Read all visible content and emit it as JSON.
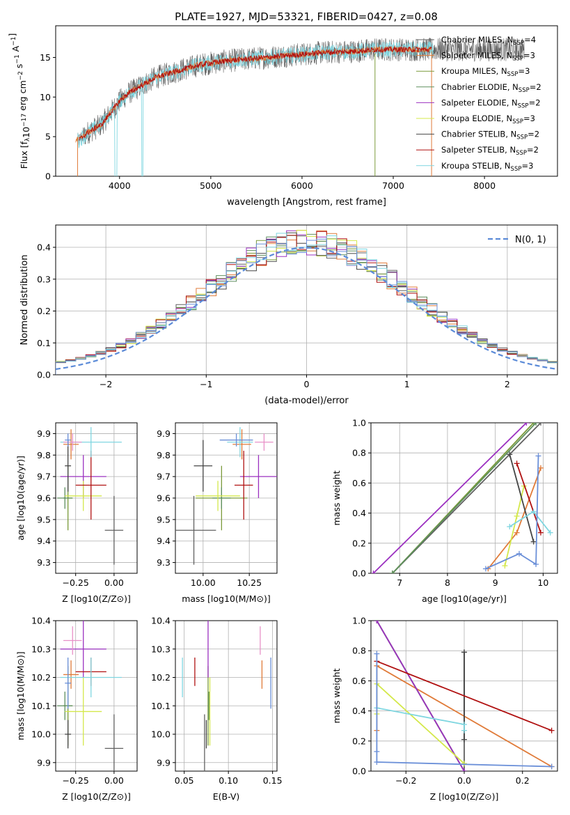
{
  "figure": {
    "title": "PLATE=1927, MJD=53321, FIBERID=0427, z=0.08"
  },
  "colors": {
    "chabrier_miles": "#606060",
    "salpeter_miles": "#e07b39",
    "kroupa_miles": "#7a9a3a",
    "chabrier_elodie": "#5e8f5e",
    "salpeter_elodie": "#9b30c0",
    "kroupa_elodie": "#d4e84a",
    "chabrier_stelib": "#444444",
    "salpeter_stelib": "#b01010",
    "kroupa_stelib": "#7fd6e0",
    "normal": "#5b8bd8",
    "extra1": "#e890c8",
    "extra2": "#6a8fd8"
  },
  "chart_data": [
    {
      "id": "spectrum",
      "type": "line",
      "xlabel": "wavelength [Angstrom, rest frame]",
      "ylabel_main": "Flux [f",
      "ylabel_sub": "λ",
      "ylabel_rest": "10",
      "ylabel_exp": "−17",
      "ylabel_tail": " erg cm",
      "ylabel_exp2": "−2",
      "ylabel_tail2": " s",
      "ylabel_exp3": "−1",
      "ylabel_tail3": " A",
      "ylabel_exp4": "−1",
      "ylabel_end": "]",
      "xlim": [
        3300,
        8800
      ],
      "ylim": [
        0,
        19
      ],
      "xticks": [
        4000,
        5000,
        6000,
        7000,
        8000
      ],
      "yticks": [
        0,
        5,
        10,
        15
      ],
      "grid": false,
      "legend_position": "top-right",
      "legend": [
        {
          "name": "Chabrier MILES, N",
          "sub": "SSP",
          "val": "=4",
          "color_key": "chabrier_miles"
        },
        {
          "name": "Salpeter MILES, N",
          "sub": "SSP",
          "val": "=3",
          "color_key": "salpeter_miles"
        },
        {
          "name": "Kroupa MILES, N",
          "sub": "SSP",
          "val": "=3",
          "color_key": "kroupa_miles"
        },
        {
          "name": "Chabrier ELODIE, N",
          "sub": "SSP",
          "val": "=2",
          "color_key": "chabrier_elodie"
        },
        {
          "name": "Salpeter ELODIE, N",
          "sub": "SSP",
          "val": "=2",
          "color_key": "salpeter_elodie"
        },
        {
          "name": "Kroupa ELODIE, N",
          "sub": "SSP",
          "val": "=3",
          "color_key": "kroupa_elodie"
        },
        {
          "name": "Chabrier STELIB, N",
          "sub": "SSP",
          "val": "=2",
          "color_key": "chabrier_stelib"
        },
        {
          "name": "Salpeter STELIB, N",
          "sub": "SSP",
          "val": "=2",
          "color_key": "salpeter_stelib"
        },
        {
          "name": "Kroupa STELIB, N",
          "sub": "SSP",
          "val": "=3",
          "color_key": "kroupa_stelib"
        }
      ],
      "continuum": {
        "x": [
          3550,
          3650,
          3800,
          3900,
          4000,
          4100,
          4250,
          4400,
          4550,
          4700,
          4850,
          5000,
          5200,
          5400,
          5600,
          5800,
          6000,
          6200,
          6400,
          6600,
          6800,
          7000,
          7200,
          7400
        ],
        "y": [
          4.5,
          5.5,
          6.5,
          8,
          9.5,
          10.5,
          11.5,
          12.5,
          13,
          13.5,
          14,
          14.3,
          14.6,
          14.8,
          15,
          15.2,
          15.4,
          15.6,
          15.7,
          15.8,
          16,
          16,
          16,
          16
        ]
      }
    },
    {
      "id": "residuals",
      "type": "bar",
      "xlabel": "(data-model)/error",
      "ylabel": "Normed distribution",
      "xlim": [
        -2.5,
        2.5
      ],
      "ylim": [
        0,
        0.47
      ],
      "xticks": [
        -2,
        -1,
        0,
        1,
        2
      ],
      "yticks": [
        0.0,
        0.1,
        0.2,
        0.3,
        0.4
      ],
      "grid": true,
      "legend_position": "top-right",
      "legend_label": "N(0, 1)",
      "bin_width": 0.1,
      "bin_start": -2.5
    },
    {
      "id": "age_vs_Z",
      "type": "scatter",
      "xlabel": "Z [log10(Z/Z⊙)]",
      "ylabel": "age  [log10(age/yr)]",
      "xlim": [
        -0.38,
        0.15
      ],
      "ylim": [
        9.25,
        9.95
      ],
      "xticks": [
        -0.25,
        0.0
      ],
      "yticks": [
        9.3,
        9.4,
        9.5,
        9.6,
        9.7,
        9.8,
        9.9
      ],
      "grid": true
    },
    {
      "id": "age_vs_mass",
      "type": "scatter",
      "xlabel": "mass [log10(M/M⊙)]",
      "xlim": [
        9.85,
        10.4
      ],
      "ylim": [
        9.25,
        9.95
      ],
      "xticks": [
        10.0,
        10.25
      ],
      "yticks": [
        9.3,
        9.4,
        9.5,
        9.6,
        9.7,
        9.8,
        9.9
      ],
      "grid": true
    },
    {
      "id": "weight_vs_age",
      "type": "line",
      "xlabel": "age  [log10(age/yr)]",
      "ylabel": "mass weight",
      "xlim": [
        6.4,
        10.3
      ],
      "ylim": [
        0,
        1
      ],
      "xticks": [
        7,
        8,
        9,
        10
      ],
      "yticks": [
        0.0,
        0.2,
        0.4,
        0.6,
        0.8,
        1.0
      ],
      "grid": true
    },
    {
      "id": "mass_vs_Z",
      "type": "scatter",
      "xlabel": "Z [log10(Z/Z⊙)]",
      "ylabel": "mass [log10(M/M⊙)]",
      "xlim": [
        -0.38,
        0.15
      ],
      "ylim": [
        9.87,
        10.4
      ],
      "xticks": [
        -0.25,
        0.0
      ],
      "yticks": [
        9.9,
        10.0,
        10.1,
        10.2,
        10.3,
        10.4
      ],
      "grid": true
    },
    {
      "id": "mass_vs_ebv",
      "type": "scatter",
      "xlabel": "E(B-V)",
      "xlim": [
        0.04,
        0.155
      ],
      "ylim": [
        9.87,
        10.4
      ],
      "xticks": [
        0.05,
        0.1,
        0.15
      ],
      "yticks": [
        9.9,
        10.0,
        10.1,
        10.2,
        10.3,
        10.4
      ],
      "grid": true
    },
    {
      "id": "weight_vs_Z",
      "type": "line",
      "xlabel": "Z [log10(Z/Z⊙)]",
      "ylabel": "mass weight",
      "xlim": [
        -0.32,
        0.32
      ],
      "ylim": [
        0,
        1
      ],
      "xticks": [
        -0.2,
        0.0,
        0.2
      ],
      "yticks": [
        0.0,
        0.2,
        0.4,
        0.6,
        0.8,
        1.0
      ],
      "grid": true
    }
  ],
  "fits": [
    {
      "key": "chabrier_miles",
      "Z": 0.0,
      "Zerr": 0.06,
      "age": 9.45,
      "ageErr": 0.16,
      "mass": 9.95,
      "massErr": 0.12,
      "ebv": 0.073,
      "weights": [
        [
          6.85,
          0.0
        ],
        [
          9.95,
          1.0
        ]
      ],
      "wZ": [
        [
          0.0,
          0.0
        ],
        [
          0.0,
          0.79
        ]
      ]
    },
    {
      "key": "salpeter_miles",
      "Z": -0.28,
      "Zerr": 0.05,
      "age": 9.85,
      "ageErr": 0.07,
      "mass": 10.21,
      "massErr": 0.05,
      "ebv": 0.138,
      "weights": [
        [
          8.85,
          0.03
        ],
        [
          9.45,
          0.27
        ],
        [
          9.95,
          0.7
        ]
      ],
      "wZ": [
        [
          -0.3,
          0.27
        ],
        [
          -0.3,
          0.7
        ],
        [
          0.3,
          0.03
        ]
      ]
    },
    {
      "key": "kroupa_miles",
      "Z": -0.3,
      "Zerr": 0.03,
      "age": 9.6,
      "ageErr": 0.15,
      "mass": 10.1,
      "massErr": 0.14,
      "ebv": 0.077,
      "weights": [
        [
          6.85,
          0.0
        ],
        [
          9.8,
          1.0
        ]
      ],
      "wZ": [
        [
          -0.3,
          1.0
        ],
        [
          0.0,
          0.0
        ]
      ]
    },
    {
      "key": "chabrier_elodie",
      "Z": -0.32,
      "Zerr": 0.05,
      "age": 9.6,
      "ageErr": 0.05,
      "mass": 10.1,
      "massErr": 0.05,
      "ebv": 0.078,
      "weights": [
        [
          6.85,
          0.0
        ],
        [
          9.85,
          1.0
        ]
      ],
      "wZ": [
        [
          -0.3,
          1.0
        ],
        [
          0.0,
          0.0
        ]
      ]
    },
    {
      "key": "salpeter_elodie",
      "Z": -0.2,
      "Zerr": 0.15,
      "age": 9.7,
      "ageErr": 0.1,
      "mass": 10.3,
      "massErr": 0.1,
      "ebv": 0.077,
      "weights": [
        [
          6.45,
          0.0
        ],
        [
          9.65,
          1.0
        ]
      ],
      "wZ": [
        [
          -0.3,
          1.0
        ],
        [
          0.0,
          0.0
        ]
      ]
    },
    {
      "key": "kroupa_elodie",
      "Z": -0.2,
      "Zerr": 0.12,
      "age": 9.61,
      "ageErr": 0.07,
      "mass": 10.08,
      "massErr": 0.12,
      "ebv": 0.079,
      "weights": [
        [
          9.2,
          0.05
        ],
        [
          9.45,
          0.38
        ],
        [
          9.6,
          0.58
        ]
      ],
      "wZ": [
        [
          -0.3,
          0.38
        ],
        [
          -0.3,
          0.58
        ],
        [
          0.0,
          0.05
        ]
      ]
    },
    {
      "key": "chabrier_stelib",
      "Z": -0.3,
      "Zerr": 0.02,
      "age": 9.75,
      "ageErr": 0.12,
      "mass": 10.0,
      "massErr": 0.05,
      "ebv": 0.075,
      "weights": [
        [
          9.3,
          0.79
        ],
        [
          9.8,
          0.21
        ]
      ],
      "wZ": [
        [
          0.0,
          0.79
        ],
        [
          0.0,
          0.21
        ]
      ]
    },
    {
      "key": "salpeter_stelib",
      "Z": -0.15,
      "Zerr": 0.1,
      "age": 9.66,
      "ageErr": 0.16,
      "mass": 10.22,
      "massErr": 0.05,
      "ebv": 0.062,
      "weights": [
        [
          9.45,
          0.73
        ],
        [
          9.95,
          0.27
        ]
      ],
      "wZ": [
        [
          -0.3,
          0.73
        ],
        [
          0.3,
          0.27
        ]
      ]
    },
    {
      "key": "kroupa_stelib",
      "Z": -0.15,
      "Zerr": 0.2,
      "age": 9.86,
      "ageErr": 0.07,
      "mass": 10.2,
      "massErr": 0.07,
      "ebv": 0.048,
      "weights": [
        [
          9.3,
          0.31
        ],
        [
          9.8,
          0.41
        ],
        [
          10.15,
          0.27
        ]
      ],
      "wZ": [
        [
          -0.3,
          0.42
        ],
        [
          0.0,
          0.31
        ],
        [
          0.0,
          0.27
        ]
      ]
    },
    {
      "key": "extra1",
      "Z": -0.27,
      "Zerr": 0.06,
      "age": 9.86,
      "ageErr": 0.04,
      "mass": 10.33,
      "massErr": 0.05,
      "ebv": 0.136,
      "weights": [],
      "wZ": []
    },
    {
      "key": "extra2",
      "Z": -0.3,
      "Zerr": 0.02,
      "age": 9.87,
      "ageErr": 0.03,
      "mass": 10.18,
      "massErr": 0.09,
      "ebv": 0.148,
      "weights": [
        [
          8.8,
          0.03
        ],
        [
          9.5,
          0.13
        ],
        [
          9.85,
          0.06
        ],
        [
          9.9,
          0.78
        ]
      ],
      "wZ": [
        [
          -0.3,
          0.78
        ],
        [
          -0.3,
          0.13
        ],
        [
          -0.3,
          0.06
        ],
        [
          0.3,
          0.03
        ]
      ]
    }
  ]
}
